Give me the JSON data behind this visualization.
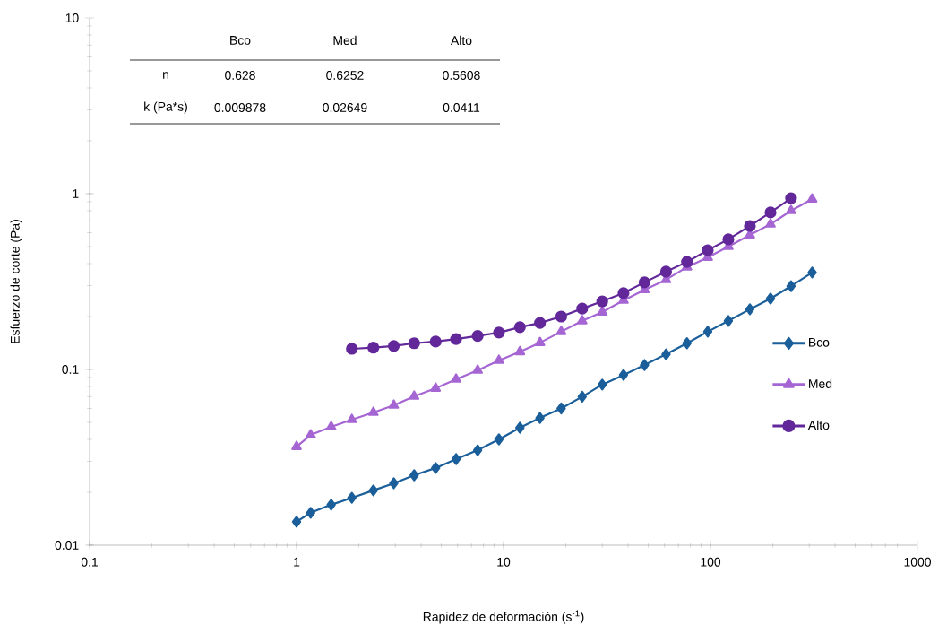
{
  "chart_data": {
    "type": "line",
    "xlabel": "Rapidez de deformación (s$^{-1}$)",
    "ylabel": "Esfuerzo de corte (Pa)",
    "x": [
      1,
      1.17,
      1.47,
      1.85,
      2.35,
      2.95,
      3.7,
      4.7,
      5.9,
      7.5,
      9.5,
      12,
      15,
      19,
      24,
      30,
      38,
      48,
      61,
      77,
      97,
      122,
      155,
      195,
      245,
      310
    ],
    "series": [
      {
        "name": "Bco",
        "color": "#1a5e9a",
        "marker": "diamond",
        "values": [
          0.0136,
          0.0153,
          0.017,
          0.0186,
          0.0205,
          0.0225,
          0.025,
          0.0275,
          0.0309,
          0.0347,
          0.04,
          0.0466,
          0.053,
          0.06,
          0.07,
          0.082,
          0.093,
          0.106,
          0.122,
          0.141,
          0.164,
          0.189,
          0.22,
          0.253,
          0.298,
          0.356
        ]
      },
      {
        "name": "Med",
        "color": "#a566d4",
        "marker": "triangle",
        "values": [
          0.0364,
          0.0424,
          0.0471,
          0.0518,
          0.0569,
          0.0625,
          0.0703,
          0.0781,
          0.0879,
          0.0989,
          0.1125,
          0.126,
          0.142,
          0.164,
          0.189,
          0.212,
          0.247,
          0.284,
          0.324,
          0.382,
          0.434,
          0.5,
          0.582,
          0.671,
          0.8,
          0.931
        ]
      },
      {
        "name": "Alto",
        "color": "#62289a",
        "marker": "circle",
        "x": [
          1.85,
          2.35,
          2.95,
          3.7,
          4.7,
          5.9,
          7.5,
          9.5,
          12,
          15,
          19,
          24,
          30,
          38,
          48,
          61,
          77,
          97,
          122,
          155,
          195,
          245
        ],
        "values": [
          0.131,
          0.133,
          0.136,
          0.141,
          0.144,
          0.149,
          0.155,
          0.162,
          0.174,
          0.184,
          0.2,
          0.222,
          0.244,
          0.272,
          0.313,
          0.36,
          0.409,
          0.477,
          0.55,
          0.655,
          0.782,
          0.942
        ]
      }
    ],
    "log": "xy",
    "xlim": [
      0.1,
      1000
    ],
    "ylim": [
      0.01,
      10
    ],
    "xticks": [
      0.1,
      1,
      10,
      100,
      1000
    ],
    "yticks": [
      0.01,
      0.1,
      1,
      10
    ],
    "legend": "right",
    "line_style": "solid",
    "annotations": [
      "Bco",
      "Med",
      "Alto",
      "n",
      "0.628",
      "0.6252",
      "0.5608",
      "k (Pa*s)",
      "0.009878",
      "0.02649",
      "0.0411"
    ]
  }
}
